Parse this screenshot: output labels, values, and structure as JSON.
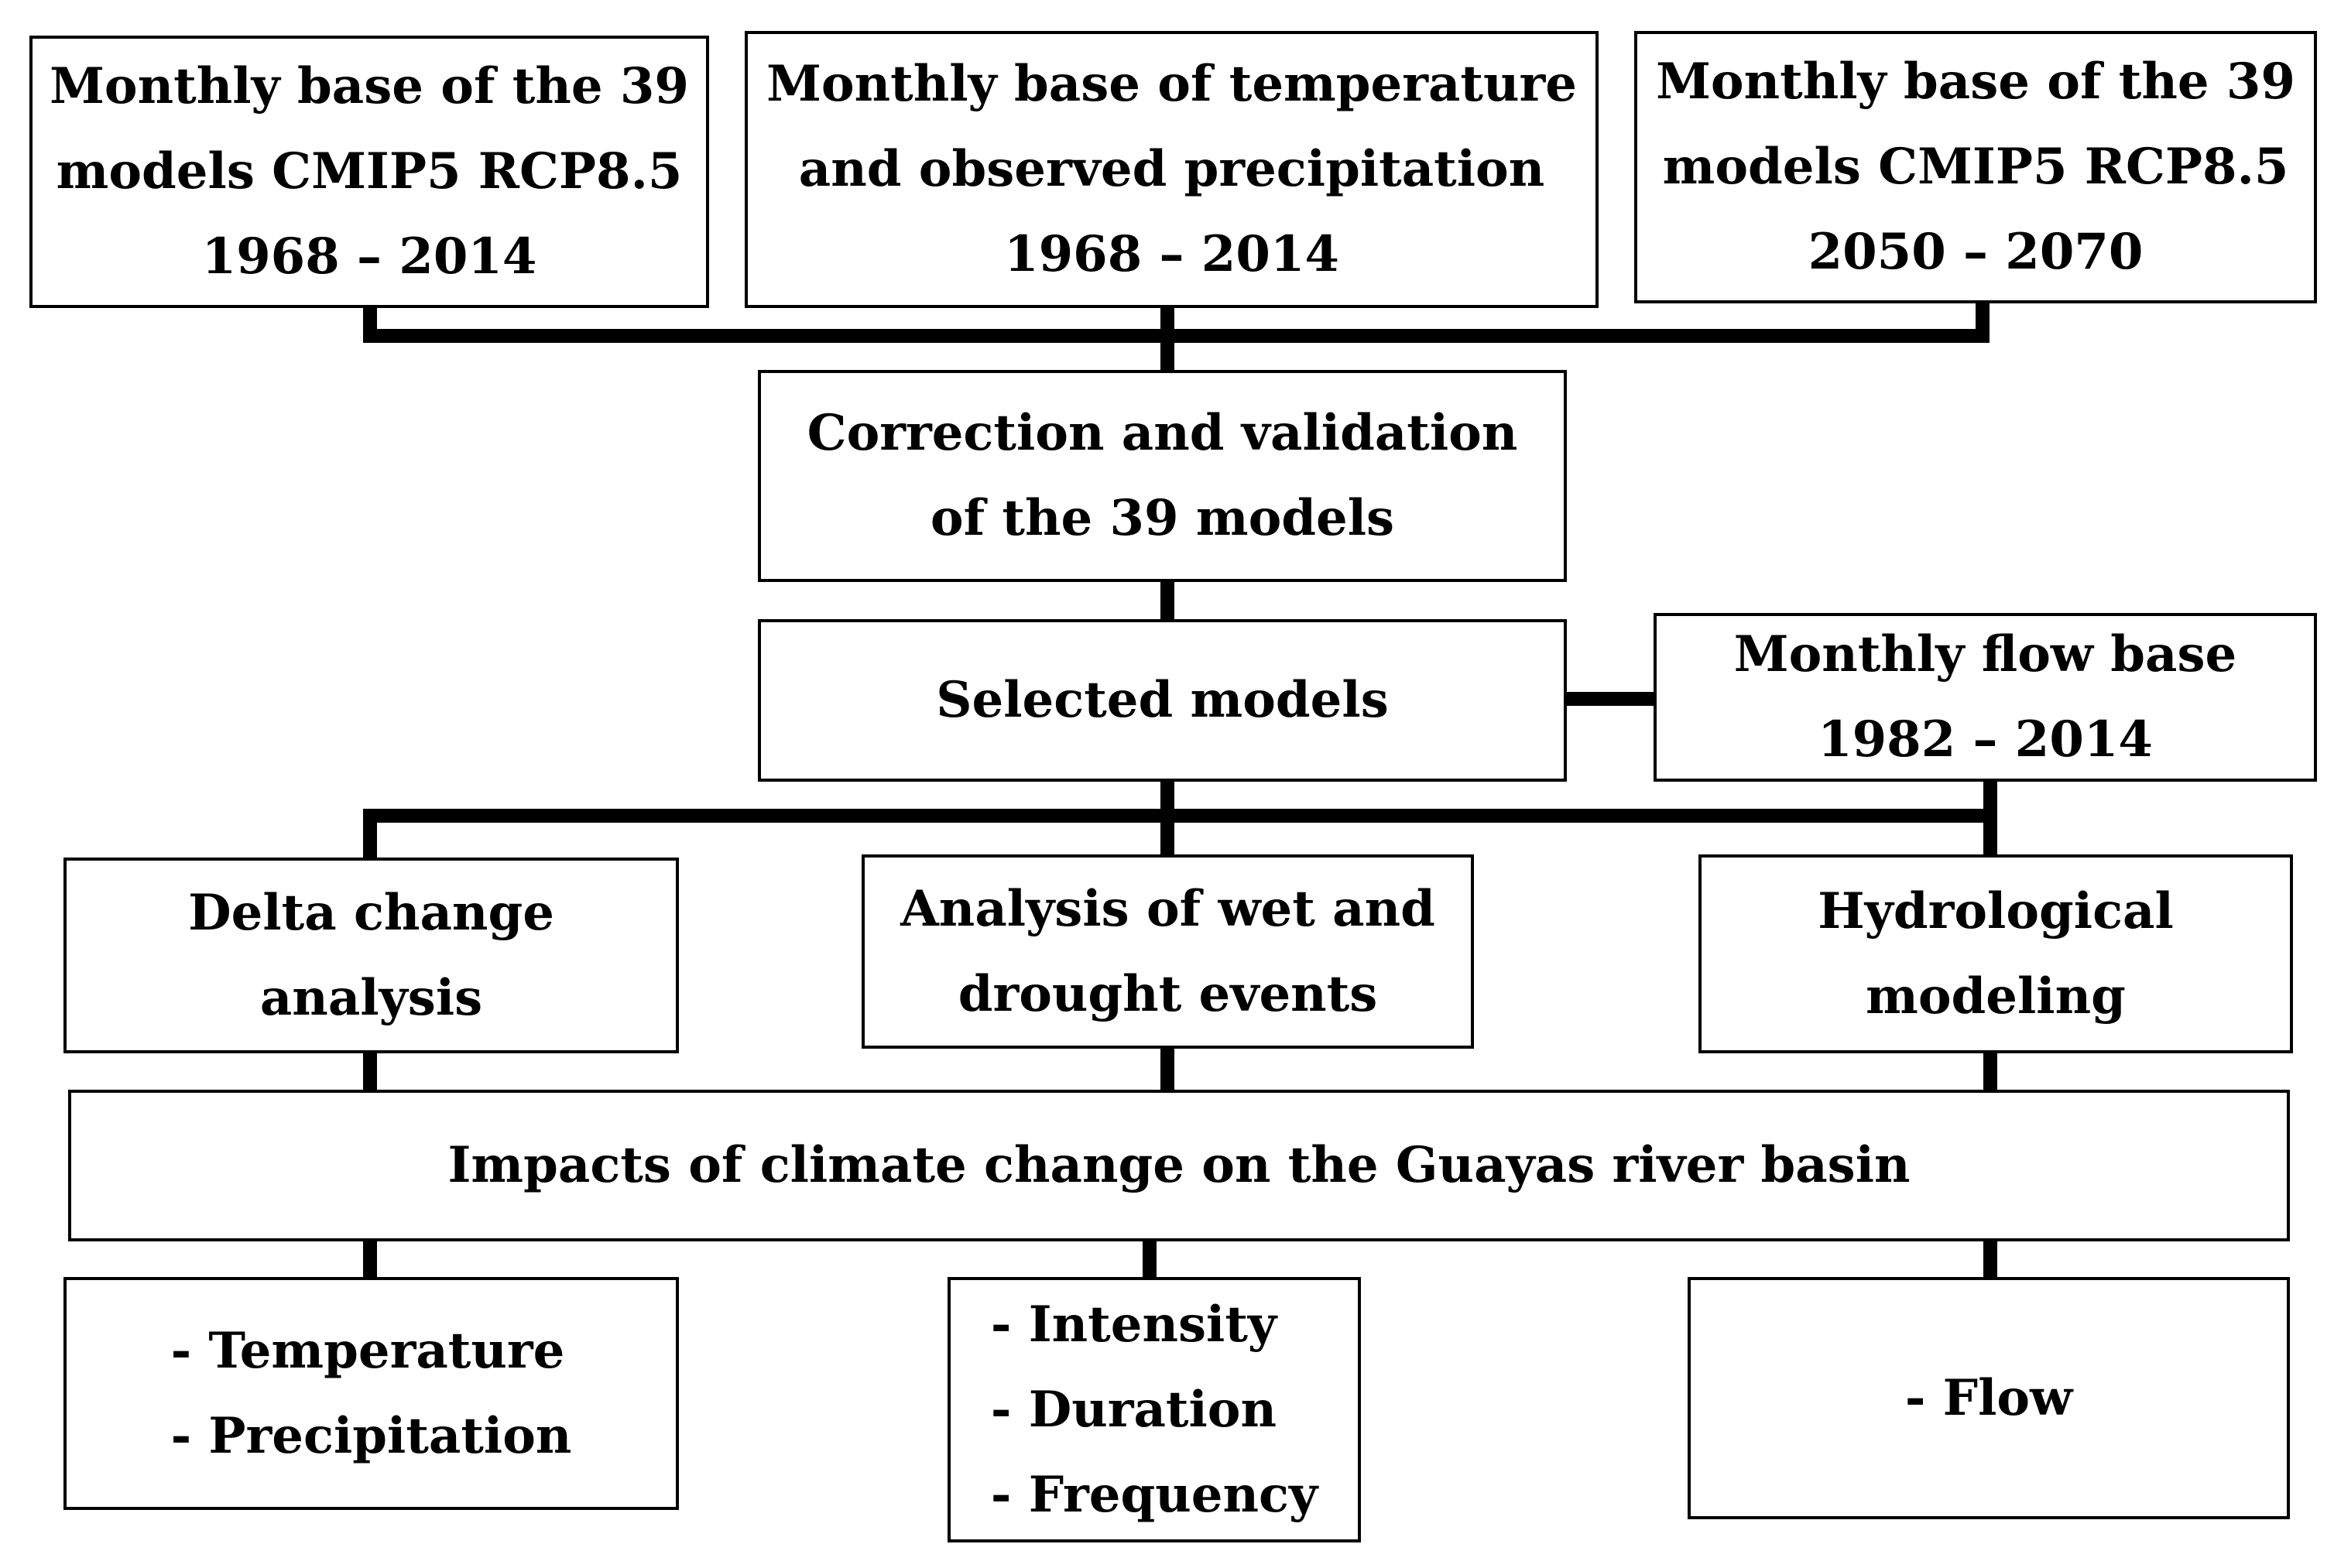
{
  "boxes": {
    "top_left": {
      "lines": [
        "Monthly base of the 39",
        "models CMIP5 RCP8.5",
        "1968 – 2014"
      ]
    },
    "top_middle": {
      "lines": [
        "Monthly base of temperature",
        "and observed precipitation",
        "1968 – 2014"
      ]
    },
    "top_right": {
      "lines": [
        "Monthly base of the 39",
        "models CMIP5 RCP8.5",
        "2050 – 2070"
      ]
    },
    "correction": {
      "lines": [
        "Correction and validation",
        "of the 39 models"
      ]
    },
    "selected": {
      "lines": [
        "Selected models"
      ]
    },
    "flow_base": {
      "lines": [
        "Monthly flow base",
        "1982 – 2014"
      ]
    },
    "delta": {
      "lines": [
        "Delta change",
        "analysis"
      ]
    },
    "wet_drought": {
      "lines": [
        "Analysis of wet and",
        "drought events"
      ]
    },
    "hydro": {
      "lines": [
        "Hydrological",
        "modeling"
      ]
    },
    "impacts": {
      "lines": [
        "Impacts of climate change on the Guayas river basin"
      ]
    },
    "out_left": {
      "lines": [
        "- Temperature",
        "- Precipitation"
      ]
    },
    "out_middle": {
      "lines": [
        "- Intensity",
        "- Duration",
        "- Frequency"
      ]
    },
    "out_right": {
      "lines": [
        "- Flow"
      ]
    }
  }
}
